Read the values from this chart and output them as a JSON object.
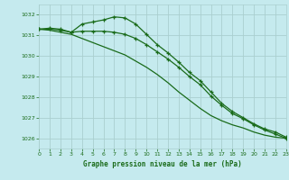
{
  "title": "Graphe pression niveau de la mer (hPa)",
  "background_color": "#c5eaee",
  "grid_color": "#aacfcf",
  "line_color": "#1a6b1a",
  "xlim": [
    0,
    23
  ],
  "ylim": [
    1025.5,
    1032.5
  ],
  "yticks": [
    1026,
    1027,
    1028,
    1029,
    1030,
    1031,
    1032
  ],
  "xticks": [
    0,
    1,
    2,
    3,
    4,
    5,
    6,
    7,
    8,
    9,
    10,
    11,
    12,
    13,
    14,
    15,
    16,
    17,
    18,
    19,
    20,
    21,
    22,
    23
  ],
  "line1_x": [
    0,
    1,
    2,
    3,
    4,
    5,
    6,
    7,
    8,
    9,
    10,
    11,
    12,
    13,
    14,
    15,
    16,
    17,
    18,
    19,
    20,
    21,
    22,
    23
  ],
  "line1_y": [
    1031.3,
    1031.35,
    1031.3,
    1031.15,
    1031.55,
    1031.65,
    1031.75,
    1031.9,
    1031.85,
    1031.55,
    1031.05,
    1030.55,
    1030.15,
    1029.7,
    1029.2,
    1028.8,
    1028.25,
    1027.7,
    1027.3,
    1027.0,
    1026.7,
    1026.45,
    1026.3,
    1026.05
  ],
  "line2_x": [
    0,
    1,
    2,
    3,
    4,
    5,
    6,
    7,
    8,
    9,
    10,
    11,
    12,
    13,
    14,
    15,
    16,
    17,
    18,
    19,
    20,
    21,
    22,
    23
  ],
  "line2_y": [
    1031.3,
    1031.3,
    1031.25,
    1031.15,
    1031.2,
    1031.2,
    1031.2,
    1031.15,
    1031.05,
    1030.85,
    1030.55,
    1030.2,
    1029.85,
    1029.45,
    1029.0,
    1028.6,
    1028.05,
    1027.6,
    1027.2,
    1026.95,
    1026.65,
    1026.4,
    1026.2,
    1026.0
  ],
  "line3_x": [
    0,
    1,
    2,
    3,
    4,
    5,
    6,
    7,
    8,
    9,
    10,
    11,
    12,
    13,
    14,
    15,
    16,
    17,
    18,
    19,
    20,
    21,
    22,
    23
  ],
  "line3_y": [
    1031.3,
    1031.25,
    1031.15,
    1031.05,
    1030.85,
    1030.65,
    1030.45,
    1030.25,
    1030.05,
    1029.75,
    1029.45,
    1029.1,
    1028.7,
    1028.25,
    1027.85,
    1027.45,
    1027.1,
    1026.85,
    1026.65,
    1026.5,
    1026.3,
    1026.15,
    1026.05,
    1026.0
  ]
}
